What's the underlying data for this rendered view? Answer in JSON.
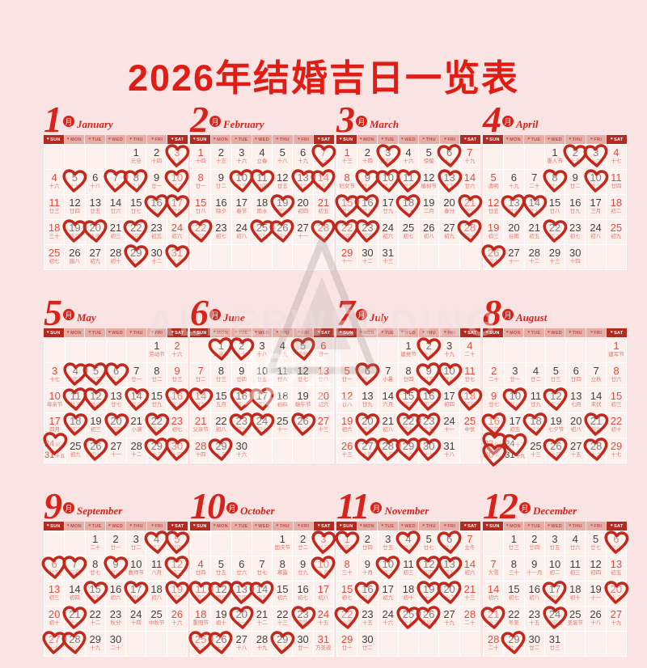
{
  "title": "2026年结婚吉日一览表",
  "watermark": {
    "brand": "ALLERWEDDING",
    "cjk": "婚礼"
  },
  "month_badge": "月",
  "weekdays": [
    "SUN",
    "MON",
    "TUE",
    "WED",
    "THU",
    "FRI",
    "SAT"
  ],
  "colors": {
    "page_background": "#fae3e3",
    "accent_red": "#e01d15",
    "heart_outline": "#c2281c",
    "weekend_number": "#e14a3f",
    "weekday_number": "#3f3f3f",
    "lunar_text": "#e5746c",
    "bar_dark": "#b32a20",
    "bar_light": "#e7aea7",
    "cell_background": "#fdf1ee"
  },
  "months": [
    {
      "num": "1",
      "name": "January",
      "first_weekday": 4,
      "lunar": [
        "元旦",
        "十四",
        "十五",
        "十六",
        "十七",
        "十八",
        "十九",
        "二十",
        "廿一",
        "廿二",
        "廿三",
        "廿四",
        "廿五",
        "廿六",
        "廿七",
        "廿八",
        "廿九",
        "三十",
        "腊月",
        "大寒",
        "初三",
        "初四",
        "初五",
        "初六",
        "初七",
        "腊八",
        "初九",
        "初十",
        "十一",
        "十二",
        "十三"
      ],
      "hearts": [
        3,
        5,
        7,
        8,
        10,
        16,
        17,
        19,
        20,
        22,
        29,
        31
      ]
    },
    {
      "num": "2",
      "name": "February",
      "first_weekday": 0,
      "lunar": [
        "十四",
        "十五",
        "十六",
        "立春",
        "十八",
        "十九",
        "二十",
        "廿一",
        "廿二",
        "廿三",
        "廿四",
        "廿五",
        "廿六",
        "情人节",
        "廿八",
        "除夕",
        "春节",
        "雨水",
        "初三",
        "初四",
        "初五",
        "初六",
        "初七",
        "初八",
        "初九",
        "初十",
        "十一",
        "十二"
      ],
      "hearts": [
        7,
        10,
        11,
        13,
        14,
        19,
        22,
        25,
        26,
        28
      ]
    },
    {
      "num": "3",
      "name": "March",
      "first_weekday": 0,
      "lunar": [
        "十三",
        "十四",
        "元宵节",
        "十六",
        "惊蛰",
        "十八",
        "十九",
        "妇女节",
        "廿一",
        "廿二",
        "廿三",
        "植树节",
        "廿五",
        "廿六",
        "廿七",
        "廿八",
        "廿九",
        "三十",
        "二月",
        "春分",
        "初三",
        "初四",
        "初五",
        "初六",
        "初七",
        "初八",
        "初九",
        "初十",
        "十一",
        "十二",
        "十三"
      ],
      "hearts": [
        3,
        6,
        9,
        10,
        11,
        13,
        15,
        16,
        18,
        21,
        22,
        23,
        28
      ]
    },
    {
      "num": "4",
      "name": "April",
      "first_weekday": 3,
      "lunar": [
        "愚人节",
        "十五",
        "十六",
        "十七",
        "清明",
        "十九",
        "二十",
        "廿一",
        "廿二",
        "廿三",
        "廿四",
        "廿五",
        "廿六",
        "廿七",
        "廿八",
        "廿九",
        "三月",
        "初二",
        "初三",
        "谷雨",
        "初五",
        "初六",
        "初七",
        "初八",
        "初九",
        "初十",
        "十一",
        "十二",
        "十三",
        "十四"
      ],
      "hearts": [
        2,
        3,
        8,
        10,
        13,
        14,
        22,
        26
      ]
    },
    {
      "num": "5",
      "name": "May",
      "first_weekday": 5,
      "lunar": [
        "劳动节",
        "十六",
        "十七",
        "青年节",
        "立夏",
        "二十",
        "廿一",
        "廿二",
        "廿三",
        "母亲节",
        "廿五",
        "廿六",
        "廿七",
        "廿八",
        "廿九",
        "三十",
        "四月",
        "初二",
        "初三",
        "初四",
        "小满",
        "初六",
        "初七",
        "初八",
        "初九",
        "初十",
        "十一",
        "十二",
        "十三",
        "十四",
        "十五"
      ],
      "hearts": [
        4,
        5,
        6,
        11,
        12,
        14,
        16,
        18,
        20,
        22,
        24,
        26,
        29,
        30
      ]
    },
    {
      "num": "6",
      "name": "June",
      "first_weekday": 1,
      "lunar": [
        "儿童节",
        "十七",
        "十八",
        "十九",
        "芒种",
        "廿一",
        "廿二",
        "廿三",
        "廿四",
        "廿五",
        "廿六",
        "廿七",
        "廿八",
        "廿九",
        "五月",
        "初二",
        "初三",
        "初四",
        "端午节",
        "初六",
        "父亲节",
        "初八",
        "初九",
        "初十",
        "十一",
        "十二",
        "十三",
        "十四",
        "十五",
        "十六"
      ],
      "hearts": [
        1,
        2,
        5,
        14,
        16,
        17,
        23,
        24,
        26,
        29
      ]
    },
    {
      "num": "7",
      "name": "July",
      "first_weekday": 3,
      "lunar": [
        "建党节",
        "十八",
        "十九",
        "二十",
        "廿一",
        "廿二",
        "小暑",
        "廿四",
        "廿五",
        "廿六",
        "廿七",
        "廿八",
        "廿九",
        "六月",
        "初二",
        "初三",
        "初四",
        "初五",
        "初六",
        "初七",
        "初八",
        "初九",
        "大暑",
        "十一",
        "中伏",
        "十三",
        "十四",
        "十五",
        "十六",
        "十七",
        "十八"
      ],
      "hearts": [
        2,
        6,
        9,
        10,
        15,
        16,
        18,
        20,
        22,
        23,
        27,
        28,
        29,
        30
      ]
    },
    {
      "num": "8",
      "name": "August",
      "first_weekday": 6,
      "lunar": [
        "建军节",
        "二十",
        "廿一",
        "廿二",
        "廿三",
        "廿四",
        "立秋",
        "廿六",
        "廿七",
        "廿八",
        "廿九",
        "三十",
        "七月",
        "末伏",
        "初三",
        "初四",
        "初五",
        "初六",
        "七夕节",
        "初八",
        "初九",
        "初十",
        "处暑",
        "十二",
        "十三",
        "十四",
        "十五",
        "十六",
        "十七",
        "十八",
        "十九"
      ],
      "hearts": [
        10,
        12,
        16,
        18,
        21,
        23,
        24,
        26,
        28,
        30
      ]
    },
    {
      "num": "9",
      "name": "September",
      "first_weekday": 2,
      "lunar": [
        "二十",
        "廿一",
        "廿二",
        "廿三",
        "廿四",
        "廿五",
        "白露",
        "廿七",
        "廿八",
        "教师节",
        "八月",
        "初二",
        "初三",
        "初四",
        "初五",
        "初六",
        "初七",
        "初八",
        "初九",
        "初十",
        "十一",
        "十二",
        "秋分",
        "十四",
        "中秋节",
        "十六",
        "十七",
        "十八",
        "十九",
        "二十"
      ],
      "hearts": [
        4,
        5,
        6,
        7,
        9,
        12,
        15,
        17,
        19,
        21,
        27,
        28
      ]
    },
    {
      "num": "10",
      "name": "October",
      "first_weekday": 4,
      "lunar": [
        "国庆节",
        "廿二",
        "廿三",
        "廿四",
        "廿五",
        "廿六",
        "廿七",
        "寒露",
        "廿九",
        "九月",
        "初二",
        "初三",
        "初四",
        "初五",
        "初六",
        "初七",
        "初八",
        "重阳节",
        "初十",
        "十一",
        "十二",
        "十三",
        "霜降",
        "十五",
        "十六",
        "十七",
        "十八",
        "十九",
        "二十",
        "廿一",
        "万圣夜"
      ],
      "hearts": [
        3,
        10,
        11,
        12,
        13,
        14,
        20,
        23,
        25,
        26,
        29
      ]
    },
    {
      "num": "11",
      "name": "November",
      "first_weekday": 0,
      "lunar": [
        "万圣节",
        "廿四",
        "廿五",
        "廿六",
        "廿七",
        "廿八",
        "立冬",
        "三十",
        "十月",
        "初二",
        "初三",
        "初四",
        "初五",
        "初六",
        "初七",
        "初八",
        "初九",
        "初十",
        "十一",
        "十二",
        "十三",
        "小雪",
        "十五",
        "十六",
        "十七",
        "感恩节",
        "十九",
        "二十",
        "廿一",
        "廿二"
      ],
      "hearts": [
        1,
        4,
        6,
        10,
        12,
        13,
        16,
        19,
        20,
        22,
        25,
        26
      ]
    },
    {
      "num": "12",
      "name": "December",
      "first_weekday": 1,
      "lunar": [
        "廿三",
        "廿四",
        "廿五",
        "廿六",
        "廿七",
        "廿八",
        "大雪",
        "三十",
        "十一月",
        "初二",
        "初三",
        "初四",
        "初五",
        "初六",
        "初七",
        "初八",
        "初九",
        "初十",
        "十一",
        "十二",
        "十三",
        "冬至",
        "十五",
        "平安夜",
        "圣诞节",
        "十八",
        "十九",
        "二十",
        "廿一",
        "廿二",
        "廿三"
      ],
      "hearts": [
        6,
        17,
        20,
        21,
        24,
        29
      ]
    }
  ]
}
